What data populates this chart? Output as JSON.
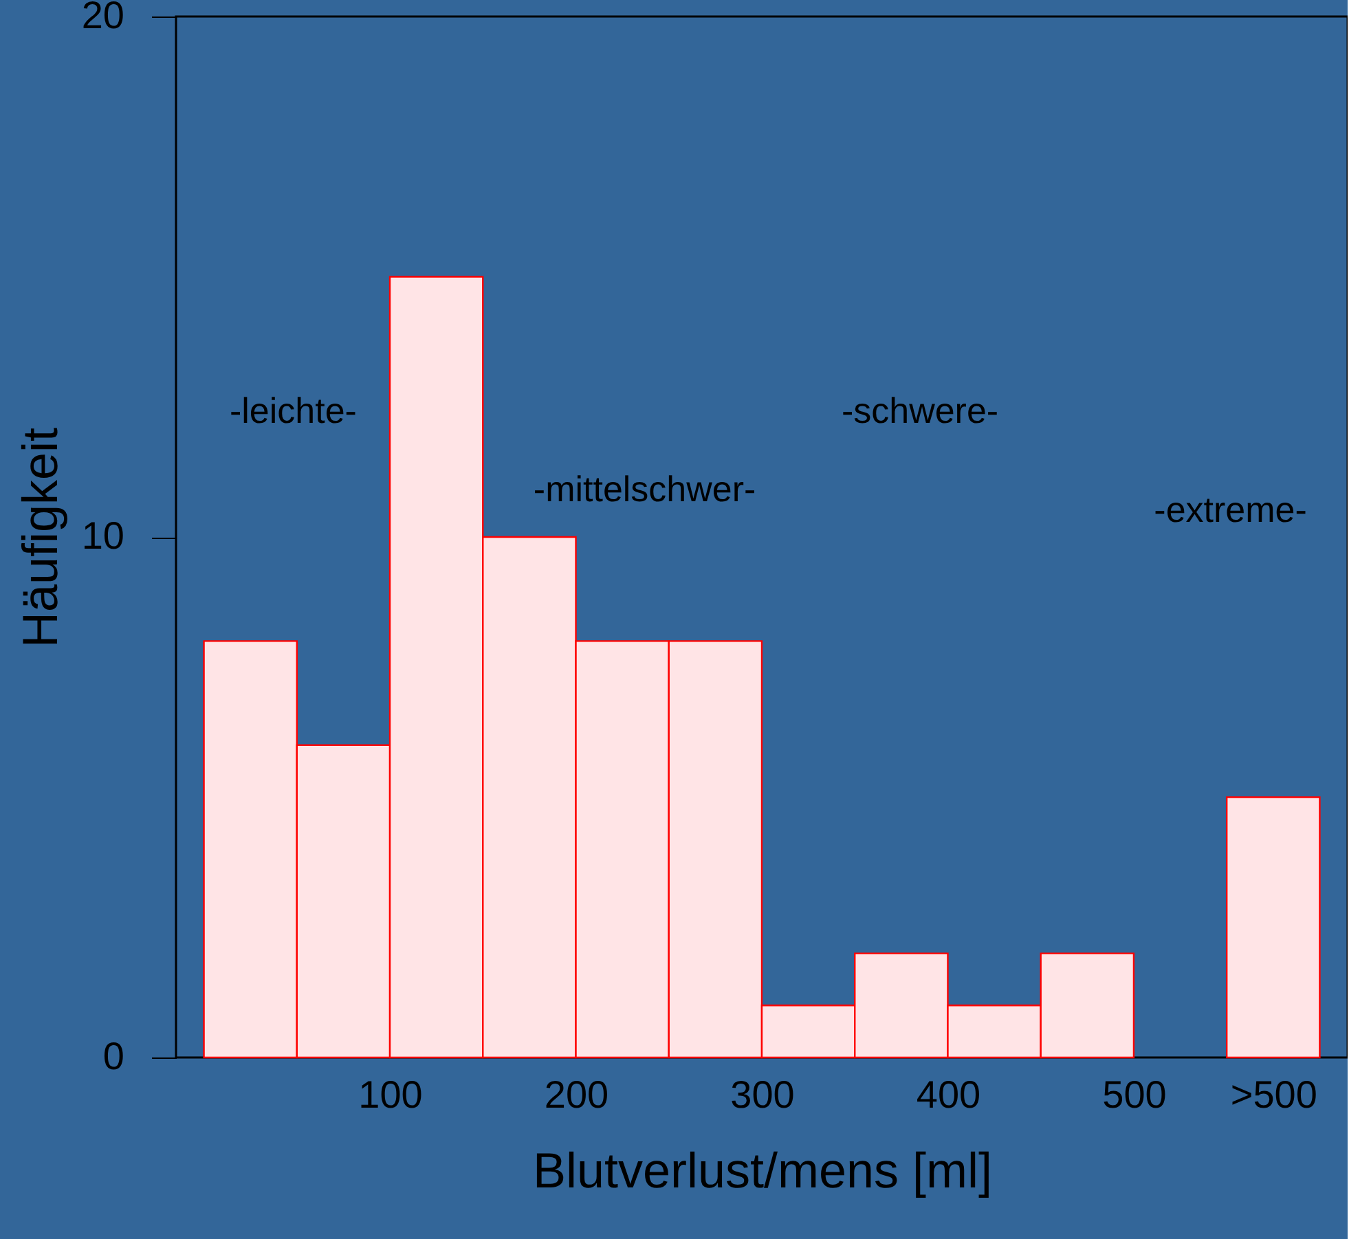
{
  "chart_data": {
    "type": "histogram",
    "xlabel": "Blutverlust/mens [ml]",
    "ylabel": "Häufigkeit",
    "bins": [
      0,
      50,
      100,
      150,
      200,
      250,
      300,
      350,
      400,
      450,
      500,
      550,
      600
    ],
    "values": [
      8,
      6,
      15,
      10,
      8,
      8,
      1,
      2,
      1,
      2,
      0,
      5
    ],
    "color": "#ffe4e6",
    "xlim": [
      -15,
      615
    ],
    "ylim": [
      0,
      20
    ],
    "xticks": [
      100,
      200,
      300,
      400,
      500,
      {
        "value": 575,
        "label": ">500"
      }
    ],
    "yticks": [
      0,
      10,
      20
    ],
    "grid": false,
    "annotations": [
      "-leichte-",
      "-mittelschwer-",
      "-schwere-",
      "-extreme-"
    ]
  }
}
